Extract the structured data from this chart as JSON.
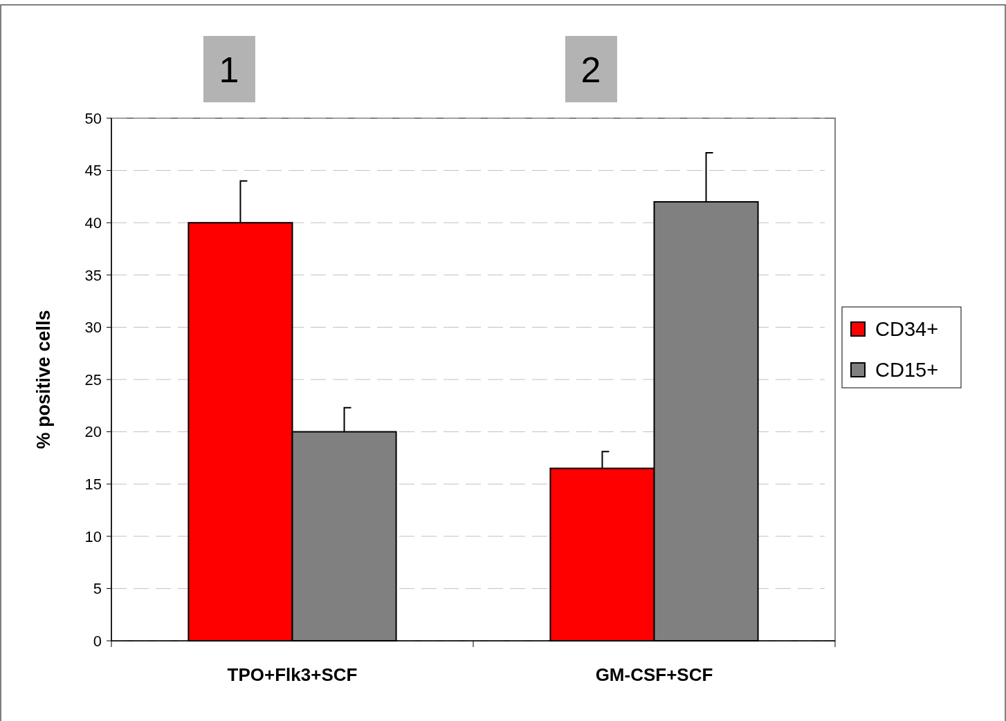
{
  "chart_data": {
    "type": "bar",
    "ylabel": "% positive cells",
    "categories": [
      "TPO+Flk3+SCF",
      "GM-CSF+SCF"
    ],
    "series": [
      {
        "name": "CD34+",
        "color": "#ff0000",
        "values": [
          40,
          16.5
        ],
        "errors": [
          [
            40,
            44
          ],
          [
            16.5,
            18.1
          ]
        ]
      },
      {
        "name": "CD15+",
        "color": "#808080",
        "values": [
          20,
          42
        ],
        "errors": [
          [
            20,
            22.3
          ],
          [
            42,
            46.7
          ]
        ]
      }
    ],
    "ylim": [
      0,
      50
    ],
    "yticks": [
      0,
      5,
      10,
      15,
      20,
      25,
      30,
      35,
      40,
      45,
      50
    ],
    "grid": "y",
    "legend": "right",
    "annotations": [
      "1",
      "2"
    ]
  }
}
